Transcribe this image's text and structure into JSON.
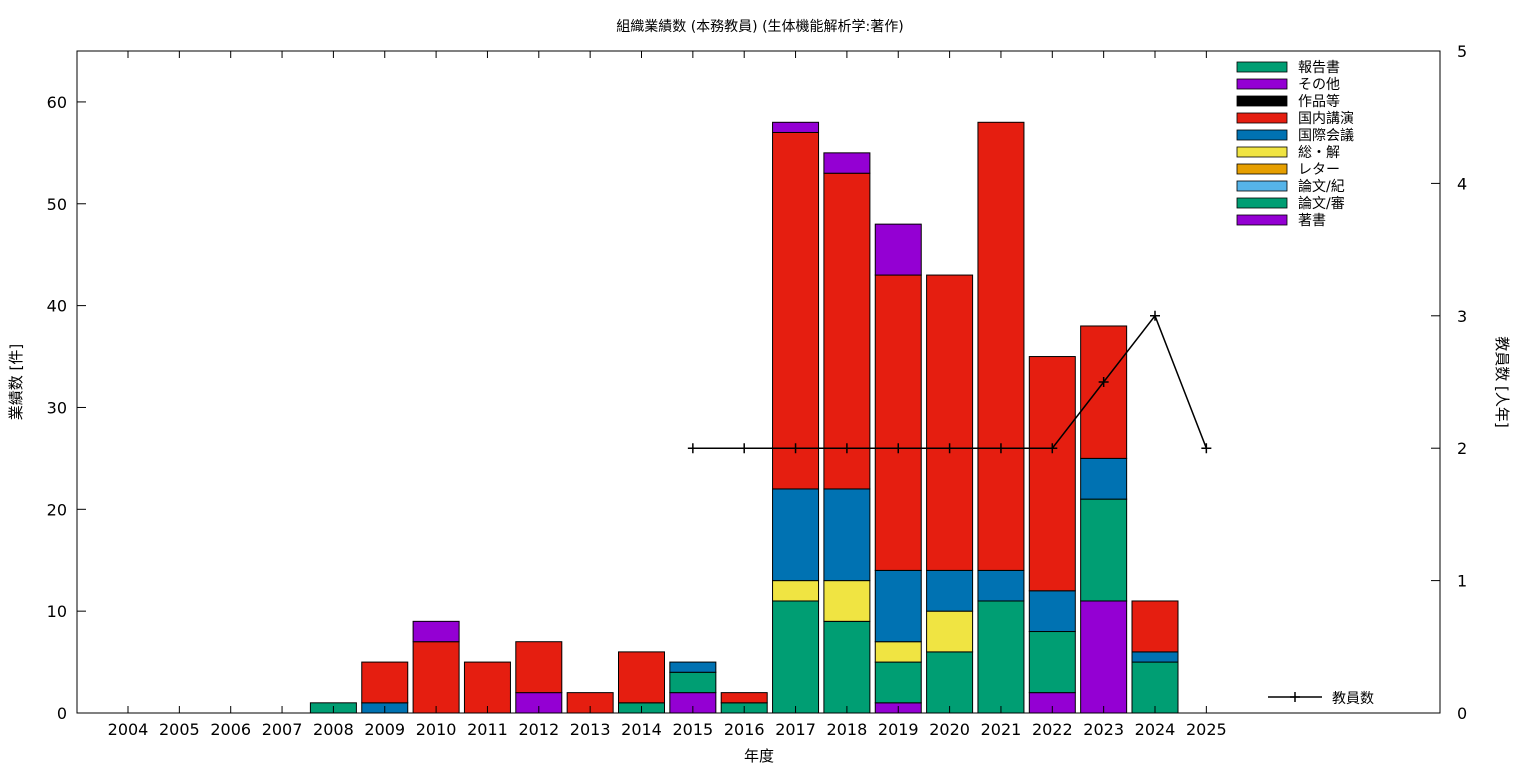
{
  "chart_data": {
    "type": "bar",
    "stacked": true,
    "title": "組織業績数 (本務教員) (生体機能解析学:著作)",
    "xlabel": "年度",
    "ylabel": "業績数 [件]",
    "y2label": "教員数 [人年]",
    "ylim": [
      0,
      65
    ],
    "y2lim": [
      0,
      5
    ],
    "yticks": [
      0,
      10,
      20,
      30,
      40,
      50,
      60
    ],
    "y2ticks": [
      0,
      1,
      2,
      3,
      4,
      5
    ],
    "grid": false,
    "legend_position": "top-right",
    "categories": [
      "2004",
      "2005",
      "2006",
      "2007",
      "2008",
      "2009",
      "2010",
      "2011",
      "2012",
      "2013",
      "2014",
      "2015",
      "2016",
      "2017",
      "2018",
      "2019",
      "2020",
      "2021",
      "2022",
      "2023",
      "2024",
      "2025"
    ],
    "series": [
      {
        "name": "著書",
        "color": "#9400d3",
        "values": [
          0,
          0,
          0,
          0,
          0,
          0,
          0,
          0,
          2,
          0,
          0,
          2,
          0,
          0,
          0,
          1,
          0,
          0,
          2,
          11,
          0,
          0
        ]
      },
      {
        "name": "論文/審",
        "color": "#009e73",
        "values": [
          0,
          0,
          0,
          0,
          1,
          0,
          0,
          0,
          0,
          0,
          1,
          2,
          1,
          11,
          9,
          4,
          6,
          11,
          6,
          10,
          5,
          0
        ]
      },
      {
        "name": "論文/紀",
        "color": "#56b4e9",
        "values": [
          0,
          0,
          0,
          0,
          0,
          0,
          0,
          0,
          0,
          0,
          0,
          0,
          0,
          0,
          0,
          0,
          0,
          0,
          0,
          0,
          0,
          0
        ]
      },
      {
        "name": "レター",
        "color": "#e69f00",
        "values": [
          0,
          0,
          0,
          0,
          0,
          0,
          0,
          0,
          0,
          0,
          0,
          0,
          0,
          0,
          0,
          0,
          0,
          0,
          0,
          0,
          0,
          0
        ]
      },
      {
        "name": "総・解",
        "color": "#f0e442",
        "values": [
          0,
          0,
          0,
          0,
          0,
          0,
          0,
          0,
          0,
          0,
          0,
          0,
          0,
          2,
          4,
          2,
          4,
          0,
          0,
          0,
          0,
          0
        ]
      },
      {
        "name": "国際会議",
        "color": "#0072b2",
        "values": [
          0,
          0,
          0,
          0,
          0,
          1,
          0,
          0,
          0,
          0,
          0,
          1,
          0,
          9,
          9,
          7,
          4,
          3,
          4,
          4,
          1,
          0
        ]
      },
      {
        "name": "国内講演",
        "color": "#e51e10",
        "values": [
          0,
          0,
          0,
          0,
          0,
          4,
          7,
          5,
          5,
          2,
          5,
          0,
          1,
          35,
          31,
          29,
          29,
          44,
          23,
          13,
          5,
          0
        ]
      },
      {
        "name": "作品等",
        "color": "#000000",
        "values": [
          0,
          0,
          0,
          0,
          0,
          0,
          0,
          0,
          0,
          0,
          0,
          0,
          0,
          0,
          0,
          0,
          0,
          0,
          0,
          0,
          0,
          0
        ]
      },
      {
        "name": "その他",
        "color": "#9400d3",
        "values": [
          0,
          0,
          0,
          0,
          0,
          0,
          2,
          0,
          0,
          0,
          0,
          0,
          0,
          1,
          2,
          5,
          0,
          0,
          0,
          0,
          0,
          0
        ]
      },
      {
        "name": "報告書",
        "color": "#009e73",
        "values": [
          0,
          0,
          0,
          0,
          0,
          0,
          0,
          0,
          0,
          0,
          0,
          0,
          0,
          0,
          0,
          0,
          0,
          0,
          0,
          0,
          0,
          0
        ]
      }
    ],
    "legend_order": [
      "報告書",
      "その他",
      "作品等",
      "国内講演",
      "国際会議",
      "総・解",
      "レター",
      "論文/紀",
      "論文/審",
      "著書"
    ],
    "line_series": {
      "name": "教員数",
      "color": "#000000",
      "axis": "y2",
      "x": [
        "2015",
        "2016",
        "2017",
        "2018",
        "2019",
        "2020",
        "2021",
        "2022",
        "2023",
        "2024",
        "2025"
      ],
      "values": [
        2,
        2,
        2,
        2,
        2,
        2,
        2,
        2,
        2.5,
        3,
        2
      ]
    }
  }
}
